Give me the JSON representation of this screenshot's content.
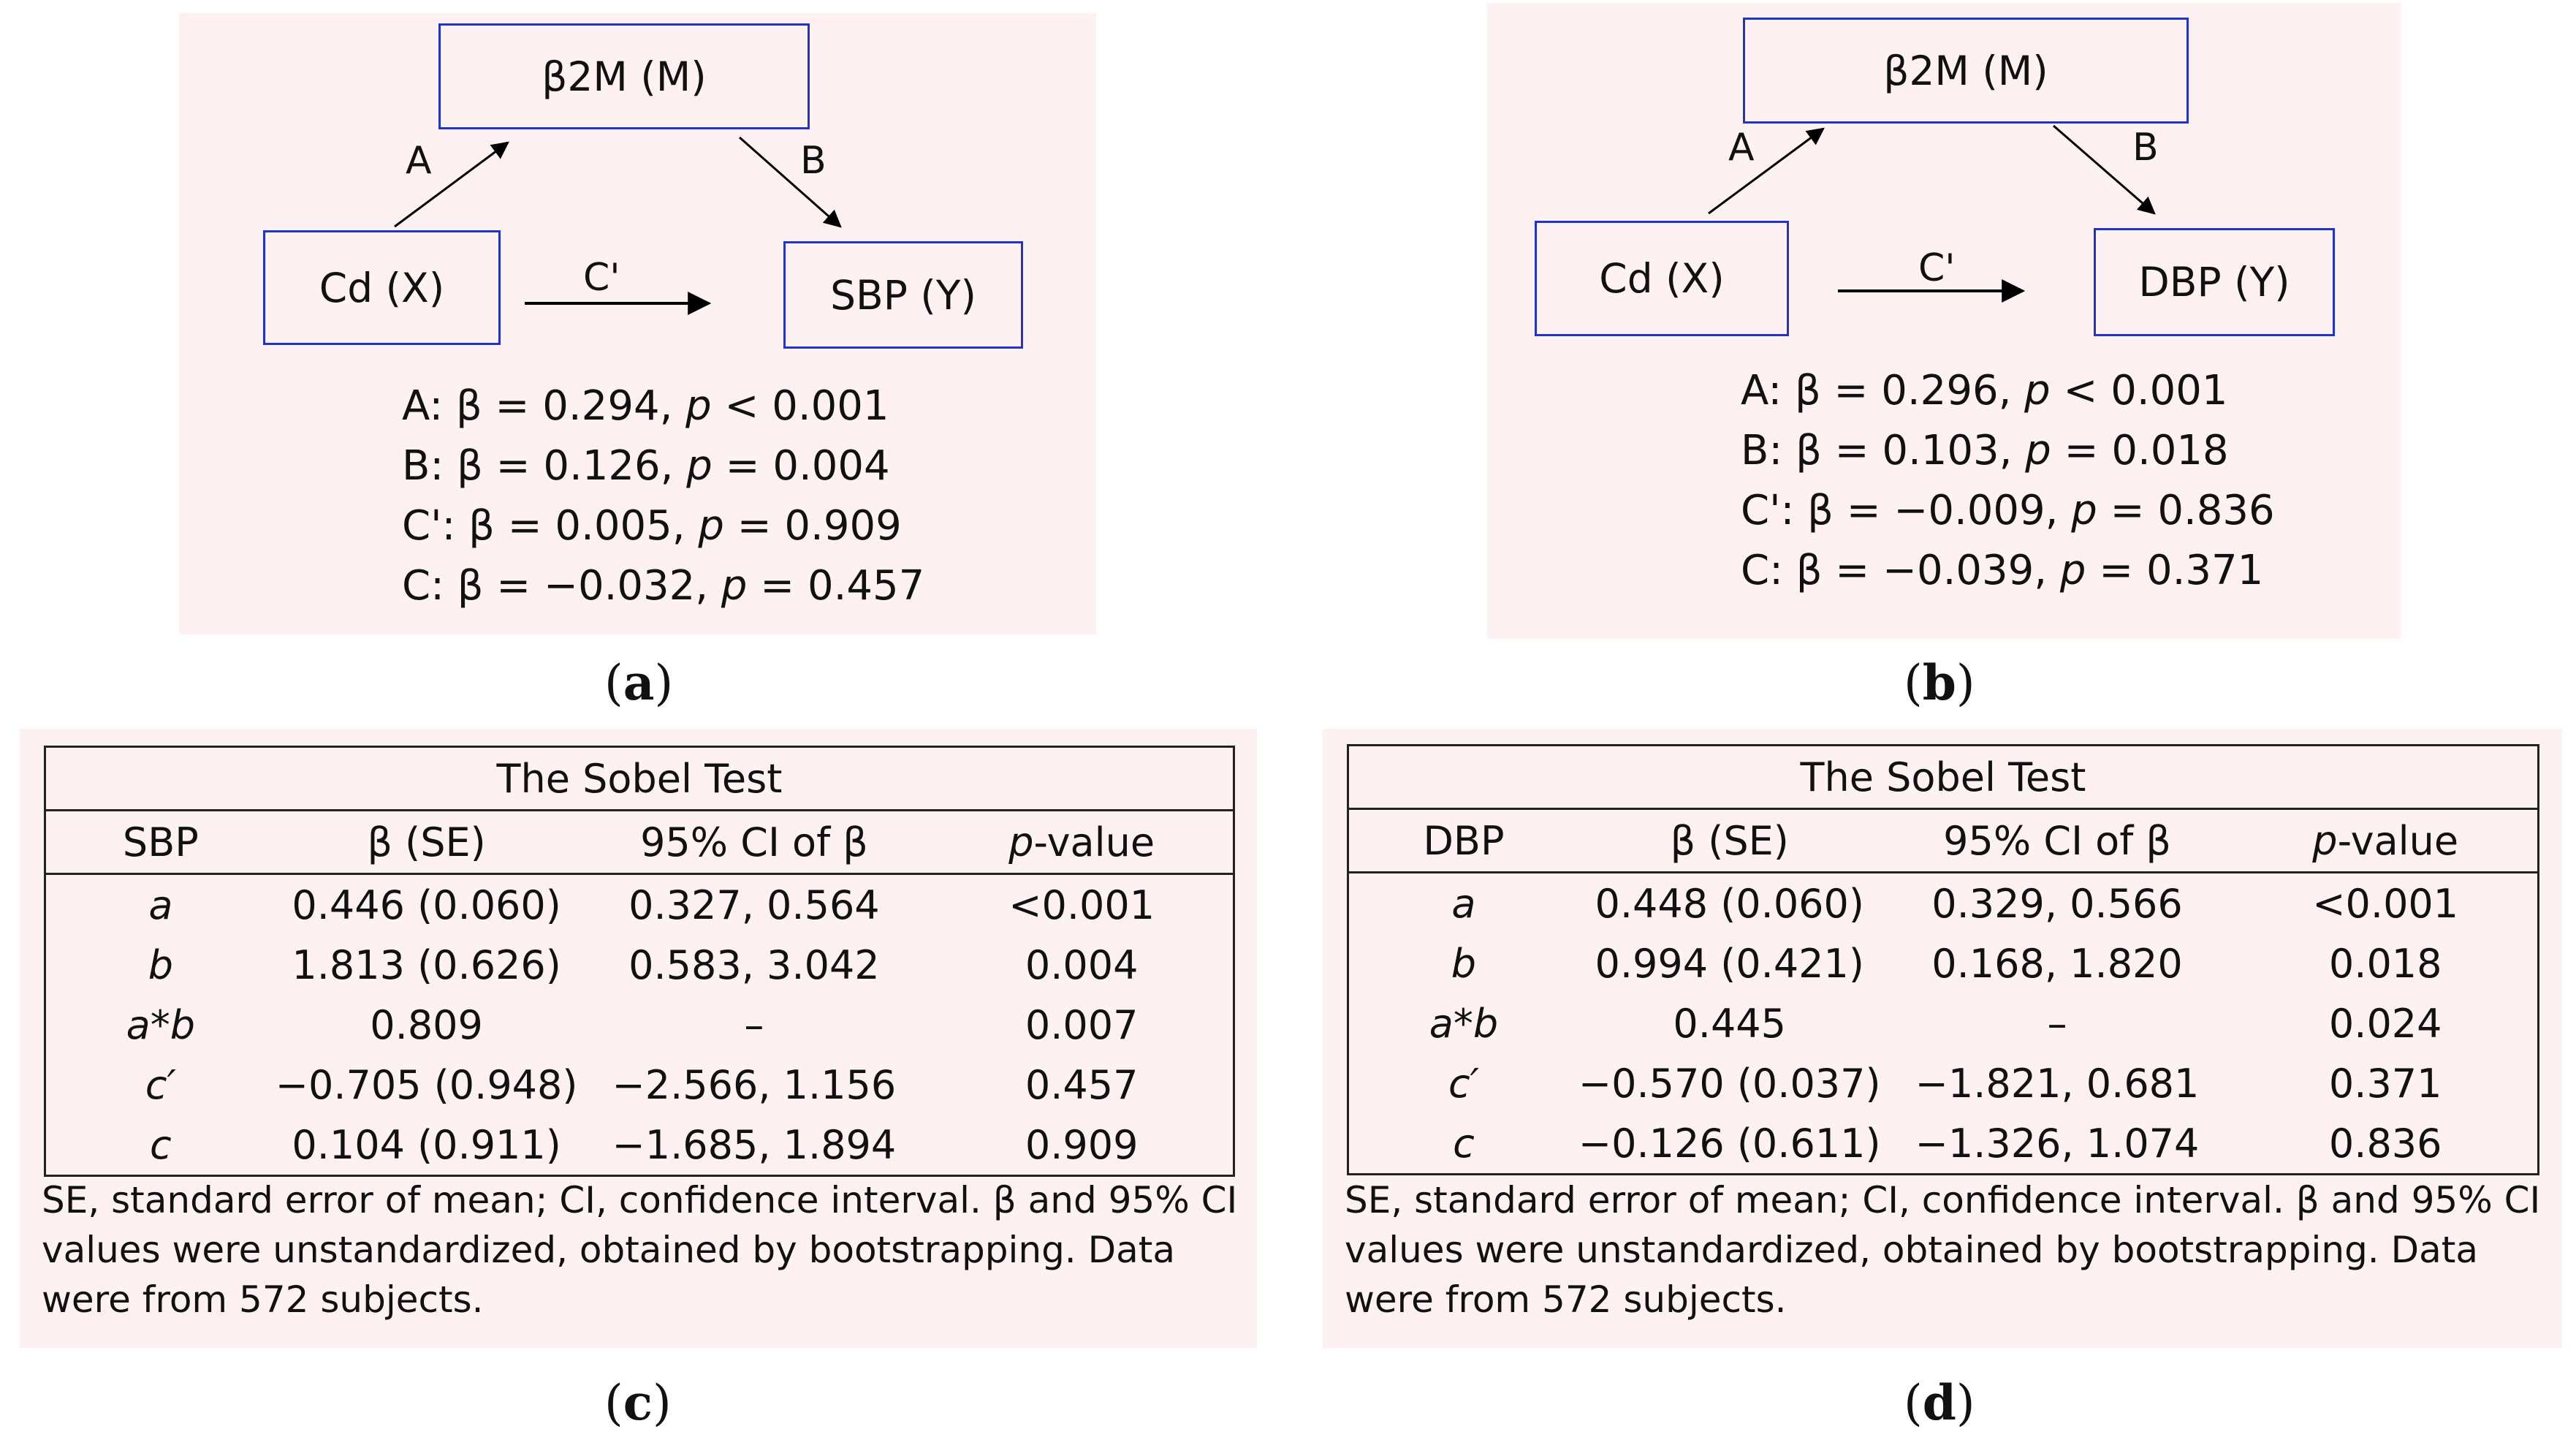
{
  "panel_a": {
    "mediator": "β2M (M)",
    "x": "Cd (X)",
    "y": "SBP (Y)",
    "path_a": "A",
    "path_b": "B",
    "path_c": "C'",
    "stats": [
      {
        "pre": "A: β = 0.294, ",
        "p": "p",
        "post": " < 0.001"
      },
      {
        "pre": "B: β = 0.126, ",
        "p": "p",
        "post": " = 0.004"
      },
      {
        "pre": "C': β = 0.005, ",
        "p": "p",
        "post": " = 0.909"
      },
      {
        "pre": "C: β = −0.032, ",
        "p": "p",
        "post": " = 0.457"
      }
    ],
    "caption": "a"
  },
  "panel_b": {
    "mediator": "β2M (M)",
    "x": "Cd (X)",
    "y": "DBP (Y)",
    "path_a": "A",
    "path_b": "B",
    "path_c": "C'",
    "stats": [
      {
        "pre": "A: β = 0.296, ",
        "p": "p",
        "post": " < 0.001"
      },
      {
        "pre": "B: β = 0.103, ",
        "p": "p",
        "post": " = 0.018"
      },
      {
        "pre": "C': β = −0.009, ",
        "p": "p",
        "post": " = 0.836"
      },
      {
        "pre": "C: β = −0.039, ",
        "p": "p",
        "post": " = 0.371"
      }
    ],
    "caption": "b"
  },
  "table_c": {
    "title": "The Sobel Test",
    "headers": [
      "SBP",
      "β (SE)",
      "95% CI of β",
      "-value"
    ],
    "p_prefix": "p",
    "rows": [
      [
        "a",
        "0.446 (0.060)",
        "0.327, 0.564",
        "<0.001"
      ],
      [
        "b",
        "1.813 (0.626)",
        "0.583, 3.042",
        "0.004"
      ],
      [
        "a*b",
        "0.809",
        "–",
        "0.007"
      ],
      [
        "c′",
        "−0.705 (0.948)",
        "−2.566, 1.156",
        "0.457"
      ],
      [
        "c",
        "0.104 (0.911)",
        "−1.685, 1.894",
        "0.909"
      ]
    ],
    "note": "SE, standard error of mean; CI, confidence interval. β and 95% CI values were unstandardized, obtained by bootstrapping. Data were from 572 subjects.",
    "caption": "c"
  },
  "table_d": {
    "title": "The Sobel Test",
    "headers": [
      "DBP",
      "β (SE)",
      "95% CI of β",
      "-value"
    ],
    "p_prefix": "p",
    "rows": [
      [
        "a",
        "0.448 (0.060)",
        "0.329, 0.566",
        "<0.001"
      ],
      [
        "b",
        "0.994 (0.421)",
        "0.168, 1.820",
        "0.018"
      ],
      [
        "a*b",
        "0.445",
        "–",
        "0.024"
      ],
      [
        "c′",
        "−0.570 (0.037)",
        "−1.821, 0.681",
        "0.371"
      ],
      [
        "c",
        "−0.126 (0.611)",
        "−1.326, 1.074",
        "0.836"
      ]
    ],
    "note": "SE, standard error of mean; CI, confidence interval. β and 95% CI values were unstandardized, obtained by bootstrapping. Data were from 572 subjects.",
    "caption": "d"
  }
}
